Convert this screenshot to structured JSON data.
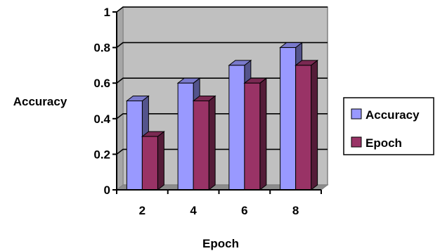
{
  "chart_data": {
    "type": "bar",
    "categories": [
      "2",
      "4",
      "6",
      "8"
    ],
    "series": [
      {
        "name": "Accuracy",
        "values": [
          0.5,
          0.6,
          0.7,
          0.8
        ],
        "color": "#9999ff"
      },
      {
        "name": "Epoch",
        "values": [
          0.3,
          0.5,
          0.6,
          0.7
        ],
        "color": "#993366"
      }
    ],
    "title": "",
    "xlabel": "Epoch",
    "ylabel": "Accuracy",
    "ylim": [
      0,
      1
    ],
    "yticks": [
      "0",
      "0.2",
      "0.4",
      "0.6",
      "0.8",
      "1"
    ],
    "grid": true,
    "style": "3d-clustered-column",
    "plot_background": "#c0c0c0",
    "legend_position": "right"
  }
}
